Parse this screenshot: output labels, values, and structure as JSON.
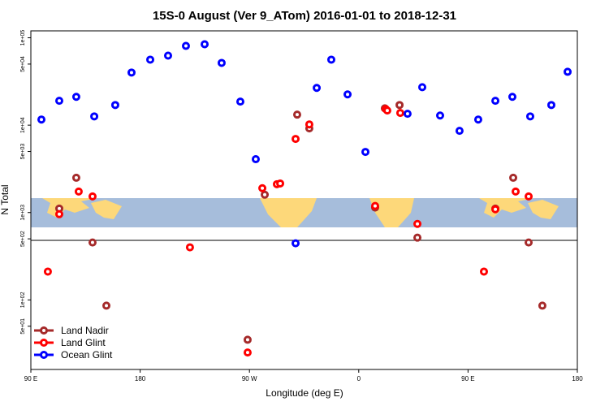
{
  "chart_data": {
    "type": "scatter",
    "title": "15S-0 August (Ver 9_ATom)   2016-01-01 to 2018-12-31",
    "x_label": "Longitude (deg E)",
    "y_label": "N Total",
    "log_y": true,
    "legend": "lower left",
    "xlim": [
      90,
      540
    ],
    "xticks": [
      {
        "value": 90,
        "label": "90 E"
      },
      {
        "value": 180,
        "label": "180"
      },
      {
        "value": 270,
        "label": "90 W"
      },
      {
        "value": 360,
        "label": "0"
      },
      {
        "value": 450,
        "label": "90 E"
      },
      {
        "value": 540,
        "label": "180"
      }
    ],
    "ylim": [
      16,
      120000
    ],
    "yticks": [
      {
        "value": 100000,
        "label": "1e+05"
      },
      {
        "value": 50000,
        "label": "5e+04"
      },
      {
        "value": 10000,
        "label": "1e+04"
      },
      {
        "value": 5000,
        "label": "5e+03"
      },
      {
        "value": 1000,
        "label": "1e+03"
      },
      {
        "value": 500,
        "label": "5e+02"
      },
      {
        "value": 100,
        "label": "1e+02"
      },
      {
        "value": 50,
        "label": "5e+01"
      }
    ],
    "series": [
      {
        "name": "Land Nadir",
        "color": "#a52a2a",
        "x": [
          113.4,
          127.4,
          140.8,
          152.2,
          268.5,
          282.6,
          309.3,
          319.3,
          373.5,
          381.5,
          393.6,
          408.3,
          472.5,
          487.2,
          499.9,
          511.2
        ],
        "y": [
          1110,
          2500,
          454,
          86,
          35,
          1600,
          13200,
          9180,
          1140,
          15600,
          17000,
          516,
          1110,
          2500,
          454,
          86
        ]
      },
      {
        "name": "Land Glint",
        "color": "#ff0000",
        "x": [
          104,
          113.4,
          129.4,
          140.8,
          221,
          280.6,
          292.6,
          295.3,
          308,
          319.3,
          373.5,
          382.2,
          383.5,
          394.2,
          408.3,
          463.1,
          472.5,
          489.2,
          499.9,
          268.5
        ],
        "y": [
          211,
          957,
          1740,
          1530,
          400,
          1900,
          2110,
          2150,
          6960,
          10200,
          1190,
          15300,
          14700,
          13800,
          741,
          211,
          1090,
          1740,
          1530,
          25
        ]
      },
      {
        "name": "Ocean Glint",
        "color": "#0000ff",
        "x": [
          98.7,
          113.4,
          127.4,
          142.2,
          159.5,
          172.9,
          188.3,
          203,
          217.7,
          233.1,
          247.1,
          262.5,
          275.2,
          308,
          325.4,
          337.4,
          350.8,
          365.5,
          400.2,
          412.3,
          427,
          443,
          458.4,
          472.5,
          486.5,
          501.2,
          518.6,
          532
        ],
        "y": [
          11600,
          19000,
          21100,
          12600,
          17000,
          40000,
          56200,
          62500,
          80700,
          84300,
          51600,
          18600,
          4080,
          445,
          26700,
          56200,
          22500,
          4940,
          13500,
          27200,
          12900,
          8610,
          11600,
          19000,
          21100,
          12600,
          17000,
          40800
        ]
      }
    ]
  }
}
